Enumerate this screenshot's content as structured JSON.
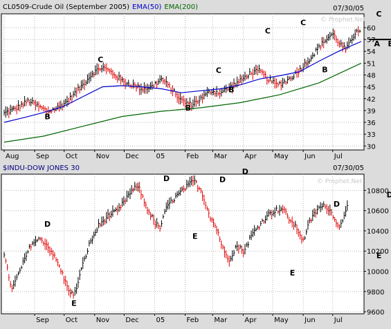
{
  "chart_data": [
    {
      "type": "line",
      "panel": "top",
      "title_parts": [
        {
          "text": "CL0509-Crude Oil (September 2005)",
          "color": "#000000"
        },
        {
          "text": "EMA(50)",
          "color": "#0000cc"
        },
        {
          "text": "EMA(200)",
          "color": "#006600"
        }
      ],
      "date_label": "07/30/05",
      "watermark": "© Prophet.Net",
      "x_labels": [
        "Aug",
        "Sep",
        "Oct",
        "Nov",
        "Dec",
        "05",
        "Feb",
        "Mar",
        "Apr",
        "May",
        "Jun",
        "Jul"
      ],
      "x_label_days": [
        0,
        31,
        61,
        92,
        122,
        153,
        184,
        212,
        243,
        273,
        304,
        334
      ],
      "x_range": [
        0,
        363
      ],
      "yticks": [
        30,
        33,
        36,
        39,
        42,
        45,
        48,
        51,
        54,
        57,
        60
      ],
      "ylim": [
        29,
        63.5
      ],
      "series": [
        {
          "role": "price",
          "color": "#000000",
          "points": [
            [
              0,
              38.3
            ],
            [
              12,
              39.5
            ],
            [
              25,
              41.5
            ],
            [
              35,
              40.0
            ],
            [
              45,
              38.7
            ],
            [
              55,
              39.8
            ],
            [
              65,
              41.5
            ],
            [
              78,
              45.0
            ],
            [
              90,
              48.5
            ],
            [
              100,
              50.0
            ],
            [
              110,
              48.5
            ],
            [
              120,
              46.5
            ],
            [
              130,
              45.5
            ],
            [
              140,
              44.5
            ],
            [
              150,
              45.0
            ],
            [
              160,
              47.0
            ],
            [
              170,
              44.5
            ],
            [
              180,
              41.5
            ],
            [
              190,
              40.5
            ],
            [
              200,
              42.0
            ],
            [
              210,
              44.0
            ],
            [
              220,
              43.5
            ],
            [
              230,
              45.0
            ],
            [
              240,
              46.5
            ],
            [
              250,
              48.5
            ],
            [
              260,
              49.0
            ],
            [
              268,
              47.0
            ],
            [
              277,
              45.5
            ],
            [
              287,
              46.5
            ],
            [
              297,
              48.5
            ],
            [
              305,
              50.5
            ],
            [
              312,
              52.5
            ],
            [
              320,
              55.0
            ],
            [
              327,
              57.0
            ],
            [
              334,
              58.5
            ],
            [
              341,
              56.0
            ],
            [
              347,
              54.5
            ],
            [
              353,
              56.5
            ],
            [
              358,
              59.5
            ],
            [
              363,
              59.5
            ]
          ]
        },
        {
          "role": "ema50",
          "name": "EMA(50)",
          "color": "#0000cc",
          "points": [
            [
              0,
              36.0
            ],
            [
              20,
              37.2
            ],
            [
              40,
              38.5
            ],
            [
              60,
              40.0
            ],
            [
              80,
              42.5
            ],
            [
              100,
              45.0
            ],
            [
              120,
              45.3
            ],
            [
              140,
              45.0
            ],
            [
              160,
              44.5
            ],
            [
              180,
              43.5
            ],
            [
              200,
              44.0
            ],
            [
              220,
              44.5
            ],
            [
              240,
              45.5
            ],
            [
              260,
              47.0
            ],
            [
              280,
              47.8
            ],
            [
              300,
              48.8
            ],
            [
              320,
              51.5
            ],
            [
              340,
              54.0
            ],
            [
              363,
              56.5
            ]
          ]
        },
        {
          "role": "ema200",
          "name": "EMA(200)",
          "color": "#006600",
          "points": [
            [
              0,
              31.0
            ],
            [
              40,
              32.5
            ],
            [
              80,
              35.0
            ],
            [
              120,
              37.5
            ],
            [
              160,
              38.8
            ],
            [
              200,
              39.7
            ],
            [
              240,
              41.0
            ],
            [
              280,
              43.0
            ],
            [
              320,
              46.0
            ],
            [
              363,
              51.0
            ]
          ]
        }
      ],
      "annotations": [
        {
          "text": "B",
          "x": 44,
          "y": 36.8
        },
        {
          "text": "C",
          "x": 98,
          "y": 51.2
        },
        {
          "text": "B",
          "x": 187,
          "y": 39.0
        },
        {
          "text": "C",
          "x": 218,
          "y": 48.5
        },
        {
          "text": "B",
          "x": 231,
          "y": 43.6
        },
        {
          "text": "C",
          "x": 268,
          "y": 58.5
        },
        {
          "text": "C",
          "x": 304,
          "y": 60.6
        },
        {
          "text": "B",
          "x": 326,
          "y": 48.7
        },
        {
          "text": "C",
          "x": 381,
          "y": 62.8
        },
        {
          "text": "A",
          "x": 379,
          "y": 55.3
        },
        {
          "text": "B",
          "x": 393,
          "y": 55.3
        }
      ],
      "support_line": {
        "x0": 371,
        "x1": 404,
        "y": 57.0
      }
    },
    {
      "type": "line",
      "panel": "bottom",
      "title": "$INDU-DOW JONES 30",
      "date_label": "07/30/05",
      "watermark": "© Prophet.Net",
      "x_labels": [
        "Sep",
        "Oct",
        "Nov",
        "Dec",
        "05",
        "Feb",
        "Mar",
        "Apr",
        "May",
        "Jun",
        "Jul"
      ],
      "x_label_days": [
        31,
        61,
        92,
        122,
        153,
        184,
        212,
        243,
        273,
        304,
        334
      ],
      "x_range": [
        0,
        363
      ],
      "yticks": [
        9600,
        9800,
        10000,
        10200,
        10400,
        10600,
        10800
      ],
      "ylim": [
        9580,
        10960
      ],
      "series": [
        {
          "role": "price",
          "color": "#000000",
          "points": [
            [
              0,
              10150
            ],
            [
              8,
              9820
            ],
            [
              18,
              10050
            ],
            [
              28,
              10280
            ],
            [
              38,
              10320
            ],
            [
              48,
              10200
            ],
            [
              56,
              10050
            ],
            [
              64,
              9850
            ],
            [
              71,
              9750
            ],
            [
              78,
              10000
            ],
            [
              86,
              10250
            ],
            [
              96,
              10450
            ],
            [
              106,
              10550
            ],
            [
              116,
              10600
            ],
            [
              126,
              10750
            ],
            [
              136,
              10850
            ],
            [
              144,
              10650
            ],
            [
              152,
              10500
            ],
            [
              158,
              10420
            ],
            [
              166,
              10650
            ],
            [
              176,
              10750
            ],
            [
              185,
              10830
            ],
            [
              193,
              10900
            ],
            [
              201,
              10780
            ],
            [
              209,
              10550
            ],
            [
              217,
              10400
            ],
            [
              223,
              10200
            ],
            [
              229,
              10120
            ],
            [
              236,
              10250
            ],
            [
              244,
              10200
            ],
            [
              251,
              10350
            ],
            [
              259,
              10450
            ],
            [
              267,
              10550
            ],
            [
              275,
              10600
            ],
            [
              283,
              10620
            ],
            [
              291,
              10500
            ],
            [
              298,
              10420
            ],
            [
              304,
              10300
            ],
            [
              311,
              10500
            ],
            [
              319,
              10620
            ],
            [
              327,
              10650
            ],
            [
              335,
              10550
            ],
            [
              341,
              10420
            ],
            [
              350,
              10700
            ]
          ]
        }
      ],
      "annotations": [
        {
          "text": "D",
          "x": 44,
          "y": 10440
        },
        {
          "text": "E",
          "x": 71,
          "y": 9660
        },
        {
          "text": "D",
          "x": 165,
          "y": 10890
        },
        {
          "text": "E",
          "x": 194,
          "y": 10320
        },
        {
          "text": "D",
          "x": 222,
          "y": 10880
        },
        {
          "text": "D",
          "x": 245,
          "y": 10960
        },
        {
          "text": "E",
          "x": 293,
          "y": 9960
        },
        {
          "text": "D",
          "x": 338,
          "y": 10640
        },
        {
          "text": "E",
          "x": 381,
          "y": 10130
        },
        {
          "text": "D",
          "x": 392,
          "y": 10730
        }
      ]
    }
  ]
}
